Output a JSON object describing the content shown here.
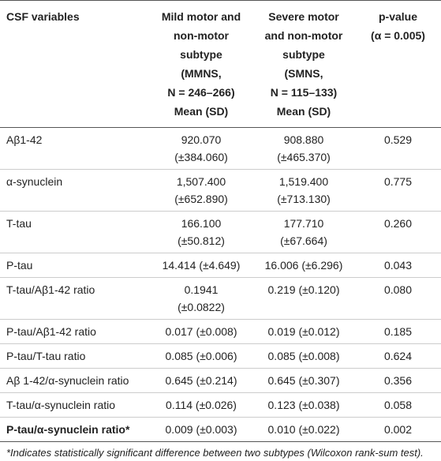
{
  "table": {
    "header": [
      [
        "CSF variables"
      ],
      [
        "Mild motor and",
        "non-motor",
        "subtype",
        "(MMNS,",
        "N = 246–266)",
        "Mean (SD)"
      ],
      [
        "Severe motor",
        "and non-motor",
        "subtype",
        "(SMNS,",
        "N = 115–133)",
        "Mean (SD)"
      ],
      [
        "p-value",
        "(α = 0.005)"
      ]
    ],
    "rows": [
      [
        "Aβ1-42",
        [
          "920.070",
          "(±384.060)"
        ],
        [
          "908.880",
          "(±465.370)"
        ],
        "0.529"
      ],
      [
        "α-synuclein",
        [
          "1,507.400",
          "(±652.890)"
        ],
        [
          "1,519.400",
          "(±713.130)"
        ],
        "0.775"
      ],
      [
        "T-tau",
        [
          "166.100",
          "(±50.812)"
        ],
        [
          "177.710",
          "(±67.664)"
        ],
        "0.260"
      ],
      [
        "P-tau",
        [
          "14.414 (±4.649)"
        ],
        [
          "16.006 (±6.296)"
        ],
        "0.043"
      ],
      [
        "T-tau/Aβ1-42 ratio",
        [
          "0.1941",
          "(±0.0822)"
        ],
        [
          "0.219 (±0.120)"
        ],
        "0.080"
      ],
      [
        "P-tau/Aβ1-42 ratio",
        [
          "0.017 (±0.008)"
        ],
        [
          "0.019 (±0.012)"
        ],
        "0.185"
      ],
      [
        "P-tau/T-tau ratio",
        [
          "0.085 (±0.006)"
        ],
        [
          "0.085 (±0.008)"
        ],
        "0.624"
      ],
      [
        "Aβ 1-42/α-synuclein ratio",
        [
          "0.645 (±0.214)"
        ],
        [
          "0.645 (±0.307)"
        ],
        "0.356"
      ],
      [
        "T-tau/α-synuclein ratio",
        [
          "0.114 (±0.026)"
        ],
        [
          "0.123 (±0.038)"
        ],
        "0.058"
      ],
      [
        "P-tau/α-synuclein ratio*",
        [
          "0.009 (±0.003)"
        ],
        [
          "0.010 (±0.022)"
        ],
        "0.002"
      ]
    ],
    "footnote": "*Indicates statistically significant difference between two subtypes (Wilcoxon rank-sum test)."
  }
}
